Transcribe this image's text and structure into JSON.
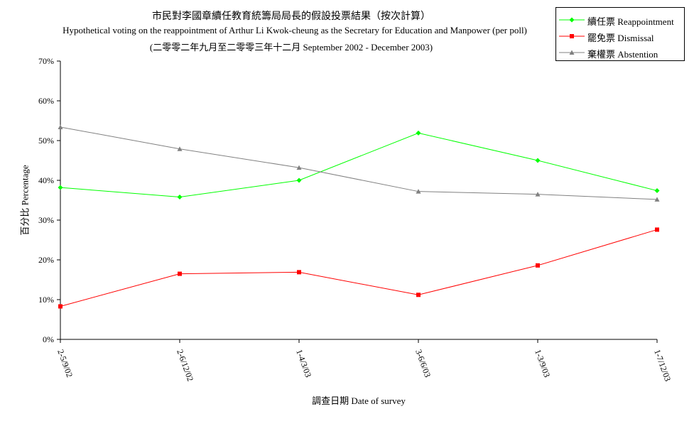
{
  "chart_data": {
    "type": "line",
    "title": "市民對李國章續任教育統籌局局長的假設投票結果（按次計算）",
    "subtitle": "Hypothetical voting on the reappointment of Arthur Li Kwok-cheung as the Secretary for Education and Manpower (per poll)",
    "subtitle2": "(二零零二年九月至二零零三年十二月 September 2002 - December 2003)",
    "xlabel": "調查日期 Date of survey",
    "ylabel": "百分比 Percentage",
    "categories": [
      "2-5/9/02",
      "2-6/12/02",
      "1-4/3/03",
      "3-6/6/03",
      "1-3/9/03",
      "1-7/12/03"
    ],
    "y_ticks": [
      "0%",
      "10%",
      "20%",
      "30%",
      "40%",
      "50%",
      "60%",
      "70%"
    ],
    "ylim": [
      0,
      70
    ],
    "grid": false,
    "legend_position": "top-right",
    "series": [
      {
        "name": "續任票  Reappointment",
        "color": "#00ff00",
        "marker": "diamond",
        "values": [
          38.2,
          35.8,
          40.0,
          51.9,
          45.0,
          37.4
        ]
      },
      {
        "name": "罷免票  Dismissal",
        "color": "#ff0000",
        "marker": "square",
        "values": [
          8.3,
          16.5,
          16.9,
          11.2,
          18.6,
          27.6
        ]
      },
      {
        "name": "棄權票  Abstention",
        "color": "#808080",
        "marker": "triangle",
        "values": [
          53.4,
          47.9,
          43.2,
          37.2,
          36.5,
          35.2
        ]
      }
    ]
  }
}
